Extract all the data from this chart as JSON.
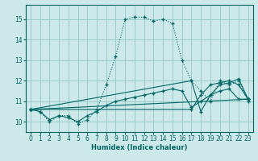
{
  "xlabel": "Humidex (Indice chaleur)",
  "bg_color": "#cce8e8",
  "grid_color": "#99cccc",
  "line_color": "#006666",
  "xlim": [
    -0.5,
    23.5
  ],
  "ylim": [
    9.5,
    15.7
  ],
  "yticks": [
    10,
    11,
    12,
    13,
    14,
    15
  ],
  "xticks": [
    0,
    1,
    2,
    3,
    4,
    5,
    6,
    7,
    8,
    9,
    10,
    11,
    12,
    13,
    14,
    15,
    16,
    17,
    18,
    19,
    20,
    21,
    22,
    23
  ],
  "series1_x": [
    0,
    1,
    2,
    3,
    4,
    5,
    6,
    7,
    8,
    9,
    10,
    11,
    12,
    13,
    14,
    15,
    16,
    17,
    18,
    19,
    20,
    21,
    22,
    23
  ],
  "series1_y": [
    10.6,
    10.5,
    10.0,
    10.3,
    10.3,
    9.9,
    10.1,
    10.6,
    11.8,
    13.2,
    15.0,
    15.1,
    15.1,
    14.9,
    15.0,
    14.8,
    13.0,
    12.0,
    11.5,
    11.0,
    12.0,
    11.8,
    12.0,
    11.0
  ],
  "series2_x": [
    0,
    1,
    2,
    3,
    4,
    5,
    6,
    7,
    8,
    9,
    10,
    11,
    12,
    13,
    14,
    15,
    16,
    17,
    18,
    19,
    20,
    21,
    22,
    23
  ],
  "series2_y": [
    10.6,
    10.5,
    10.1,
    10.3,
    10.2,
    10.0,
    10.3,
    10.5,
    10.8,
    11.0,
    11.1,
    11.2,
    11.3,
    11.4,
    11.5,
    11.6,
    11.5,
    10.7,
    11.0,
    11.3,
    11.5,
    11.6,
    11.1,
    11.1
  ],
  "series3_x": [
    0,
    23
  ],
  "series3_y": [
    10.6,
    11.1
  ],
  "series4_x": [
    0,
    17,
    18,
    19,
    20,
    21,
    22,
    23
  ],
  "series4_y": [
    10.6,
    10.6,
    11.3,
    11.8,
    11.9,
    12.0,
    11.8,
    11.1
  ],
  "series5_x": [
    0,
    17,
    18,
    19,
    20,
    21,
    22,
    23
  ],
  "series5_y": [
    10.6,
    12.0,
    10.5,
    11.3,
    11.8,
    11.9,
    12.1,
    11.1
  ]
}
